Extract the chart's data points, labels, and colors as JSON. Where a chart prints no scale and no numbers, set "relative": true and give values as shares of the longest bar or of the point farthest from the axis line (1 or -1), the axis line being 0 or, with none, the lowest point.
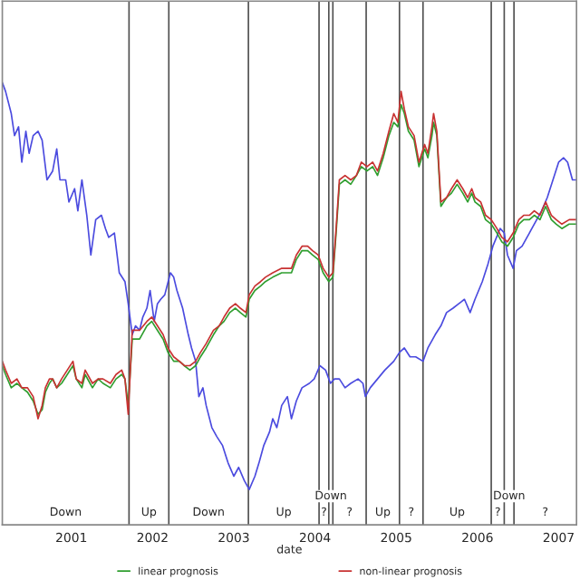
{
  "chart_data": {
    "type": "line",
    "relative": true,
    "xlabel": "date",
    "x": [
      2000.15,
      2000.19,
      2000.26,
      2000.33,
      2000.39,
      2000.46,
      2000.53,
      2000.59,
      2000.64,
      2000.68,
      2000.73,
      2000.77,
      2000.82,
      2000.88,
      2000.95,
      2001.02,
      2001.06,
      2001.13,
      2001.17,
      2001.26,
      2001.33,
      2001.39,
      2001.48,
      2001.55,
      2001.62,
      2001.66,
      2001.7,
      2001.75,
      2001.84,
      2001.93,
      2001.99,
      2002.06,
      2002.13,
      2002.19,
      2002.26,
      2002.33,
      2002.39,
      2002.46,
      2002.53,
      2002.59,
      2002.66,
      2002.75,
      2002.82,
      2002.88,
      2002.95,
      2003.02,
      2003.08,
      2003.15,
      2003.19,
      2003.26,
      2003.33,
      2003.39,
      2003.48,
      2003.59,
      2003.71,
      2003.77,
      2003.84,
      2003.91,
      2003.97,
      2004.04,
      2004.1,
      2004.17,
      2004.22,
      2004.26,
      2004.3,
      2004.37,
      2004.44,
      2004.51,
      2004.57,
      2004.64,
      2004.71,
      2004.77,
      2004.84,
      2004.91,
      2004.97,
      2005.02,
      2005.06,
      2005.1,
      2005.15,
      2005.22,
      2005.28,
      2005.35,
      2005.39,
      2005.44,
      2005.46,
      2005.5,
      2005.55,
      2005.62,
      2005.68,
      2005.75,
      2005.82,
      2005.88,
      2005.93,
      2005.97,
      2006.04,
      2006.1,
      2006.17,
      2006.24,
      2006.3,
      2006.37,
      2006.44,
      2006.51,
      2006.57,
      2006.64,
      2006.7,
      2006.77,
      2006.84,
      2006.91,
      2006.97,
      2007.04,
      2007.13,
      2007.22
    ],
    "series": [
      {
        "color": "#4b4bdf",
        "x": [
          2000.15,
          2000.19,
          2000.26,
          2000.3,
          2000.35,
          2000.39,
          2000.44,
          2000.48,
          2000.53,
          2000.59,
          2000.64,
          2000.7,
          2000.77,
          2000.82,
          2000.86,
          2000.93,
          2000.97,
          2001.04,
          2001.08,
          2001.13,
          2001.19,
          2001.24,
          2001.3,
          2001.37,
          2001.42,
          2001.46,
          2001.53,
          2001.59,
          2001.66,
          2001.7,
          2001.75,
          2001.79,
          2001.84,
          2001.88,
          2001.93,
          2001.97,
          2002.02,
          2002.06,
          2002.1,
          2002.15,
          2002.22,
          2002.26,
          2002.3,
          2002.37,
          2002.44,
          2002.48,
          2002.53,
          2002.57,
          2002.62,
          2002.66,
          2002.73,
          2002.79,
          2002.86,
          2002.93,
          2003.0,
          2003.06,
          2003.13,
          2003.19,
          2003.26,
          2003.31,
          2003.37,
          2003.44,
          2003.48,
          2003.53,
          2003.59,
          2003.66,
          2003.71,
          2003.77,
          2003.84,
          2003.93,
          2003.99,
          2004.06,
          2004.13,
          2004.19,
          2004.24,
          2004.3,
          2004.37,
          2004.44,
          2004.53,
          2004.59,
          2004.62,
          2004.68,
          2004.77,
          2004.86,
          2004.97,
          2005.04,
          2005.1,
          2005.17,
          2005.24,
          2005.33,
          2005.39,
          2005.48,
          2005.55,
          2005.62,
          2005.7,
          2005.77,
          2005.84,
          2005.91,
          2005.97,
          2006.06,
          2006.13,
          2006.19,
          2006.28,
          2006.33,
          2006.37,
          2006.44,
          2006.48,
          2006.55,
          2006.64,
          2006.73,
          2006.79,
          2006.86,
          2006.93,
          2007.0,
          2007.06,
          2007.11,
          2007.17,
          2007.22
        ],
        "values": [
          1.0,
          0.98,
          0.93,
          0.88,
          0.9,
          0.82,
          0.89,
          0.84,
          0.88,
          0.89,
          0.87,
          0.78,
          0.8,
          0.85,
          0.78,
          0.78,
          0.73,
          0.76,
          0.71,
          0.78,
          0.7,
          0.61,
          0.69,
          0.7,
          0.67,
          0.65,
          0.66,
          0.57,
          0.55,
          0.5,
          0.43,
          0.45,
          0.44,
          0.47,
          0.49,
          0.53,
          0.46,
          0.5,
          0.51,
          0.52,
          0.57,
          0.56,
          0.53,
          0.49,
          0.43,
          0.4,
          0.37,
          0.29,
          0.31,
          0.27,
          0.22,
          0.2,
          0.18,
          0.14,
          0.11,
          0.13,
          0.1,
          0.08,
          0.11,
          0.14,
          0.18,
          0.21,
          0.24,
          0.22,
          0.27,
          0.29,
          0.24,
          0.28,
          0.31,
          0.32,
          0.33,
          0.36,
          0.35,
          0.32,
          0.33,
          0.33,
          0.31,
          0.32,
          0.33,
          0.32,
          0.29,
          0.31,
          0.33,
          0.35,
          0.37,
          0.39,
          0.4,
          0.38,
          0.38,
          0.37,
          0.4,
          0.43,
          0.45,
          0.48,
          0.49,
          0.5,
          0.51,
          0.48,
          0.51,
          0.55,
          0.59,
          0.63,
          0.67,
          0.66,
          0.61,
          0.58,
          0.62,
          0.63,
          0.66,
          0.69,
          0.71,
          0.74,
          0.78,
          0.82,
          0.83,
          0.82,
          0.78,
          0.78
        ]
      },
      {
        "name": "linear prognosis",
        "color": "#2f9e2f",
        "values": [
          0.36,
          0.34,
          0.31,
          0.32,
          0.31,
          0.3,
          0.28,
          0.25,
          0.26,
          0.3,
          0.32,
          0.33,
          0.31,
          0.32,
          0.34,
          0.36,
          0.33,
          0.31,
          0.34,
          0.31,
          0.33,
          0.32,
          0.31,
          0.33,
          0.34,
          0.33,
          0.27,
          0.42,
          0.42,
          0.45,
          0.46,
          0.44,
          0.42,
          0.39,
          0.37,
          0.37,
          0.36,
          0.35,
          0.36,
          0.38,
          0.4,
          0.43,
          0.45,
          0.46,
          0.48,
          0.49,
          0.48,
          0.47,
          0.51,
          0.53,
          0.54,
          0.55,
          0.56,
          0.57,
          0.57,
          0.6,
          0.62,
          0.62,
          0.61,
          0.6,
          0.57,
          0.55,
          0.56,
          0.66,
          0.77,
          0.78,
          0.77,
          0.79,
          0.81,
          0.8,
          0.81,
          0.79,
          0.83,
          0.88,
          0.91,
          0.9,
          0.95,
          0.93,
          0.89,
          0.87,
          0.81,
          0.85,
          0.83,
          0.88,
          0.91,
          0.88,
          0.72,
          0.74,
          0.75,
          0.77,
          0.75,
          0.73,
          0.75,
          0.73,
          0.72,
          0.69,
          0.68,
          0.66,
          0.64,
          0.63,
          0.65,
          0.68,
          0.69,
          0.69,
          0.7,
          0.69,
          0.72,
          0.69,
          0.68,
          0.67,
          0.68,
          0.68
        ]
      },
      {
        "name": "non-linear prognosis",
        "color": "#c83232",
        "values": [
          0.37,
          0.35,
          0.32,
          0.33,
          0.31,
          0.31,
          0.29,
          0.24,
          0.27,
          0.31,
          0.33,
          0.33,
          0.31,
          0.33,
          0.35,
          0.37,
          0.33,
          0.32,
          0.35,
          0.32,
          0.33,
          0.33,
          0.32,
          0.34,
          0.35,
          0.33,
          0.25,
          0.44,
          0.44,
          0.46,
          0.47,
          0.45,
          0.43,
          0.4,
          0.38,
          0.37,
          0.36,
          0.36,
          0.37,
          0.39,
          0.41,
          0.44,
          0.45,
          0.47,
          0.49,
          0.5,
          0.49,
          0.48,
          0.52,
          0.54,
          0.55,
          0.56,
          0.57,
          0.58,
          0.58,
          0.61,
          0.63,
          0.63,
          0.62,
          0.61,
          0.58,
          0.56,
          0.57,
          0.67,
          0.78,
          0.79,
          0.78,
          0.79,
          0.82,
          0.81,
          0.82,
          0.8,
          0.84,
          0.89,
          0.93,
          0.91,
          0.98,
          0.94,
          0.9,
          0.88,
          0.82,
          0.86,
          0.84,
          0.9,
          0.93,
          0.89,
          0.73,
          0.74,
          0.76,
          0.78,
          0.76,
          0.74,
          0.76,
          0.74,
          0.73,
          0.7,
          0.69,
          0.67,
          0.65,
          0.64,
          0.66,
          0.69,
          0.7,
          0.7,
          0.71,
          0.7,
          0.73,
          0.7,
          0.69,
          0.68,
          0.69,
          0.69
        ]
      }
    ],
    "xlim": [
      2000.15,
      2007.22
    ],
    "xticks": [
      2001,
      2002,
      2003,
      2004,
      2005,
      2006,
      2007
    ],
    "ref_lines": [
      {
        "axis": "x",
        "value": 2001.71,
        "color": "#505050"
      },
      {
        "axis": "x",
        "value": 2002.2,
        "color": "#505050"
      },
      {
        "axis": "x",
        "value": 2003.18,
        "color": "#505050"
      },
      {
        "axis": "x",
        "value": 2004.05,
        "color": "#505050"
      },
      {
        "axis": "x",
        "value": 2004.17,
        "color": "#505050"
      },
      {
        "axis": "x",
        "value": 2004.22,
        "color": "#505050"
      },
      {
        "axis": "x",
        "value": 2004.63,
        "color": "#505050"
      },
      {
        "axis": "x",
        "value": 2005.04,
        "color": "#505050"
      },
      {
        "axis": "x",
        "value": 2005.33,
        "color": "#505050"
      },
      {
        "axis": "x",
        "value": 2006.17,
        "color": "#505050"
      },
      {
        "axis": "x",
        "value": 2006.33,
        "color": "#505050"
      },
      {
        "axis": "x",
        "value": 2006.45,
        "color": "#505050"
      }
    ],
    "annotations": [
      "Down",
      "Up",
      "Down",
      "Up",
      "?",
      "Down",
      "?",
      "Up",
      "?",
      "Up",
      "?",
      "Down",
      "?"
    ],
    "legend": "bottom",
    "grid": false,
    "marker": "none",
    "line_style": "solid"
  }
}
